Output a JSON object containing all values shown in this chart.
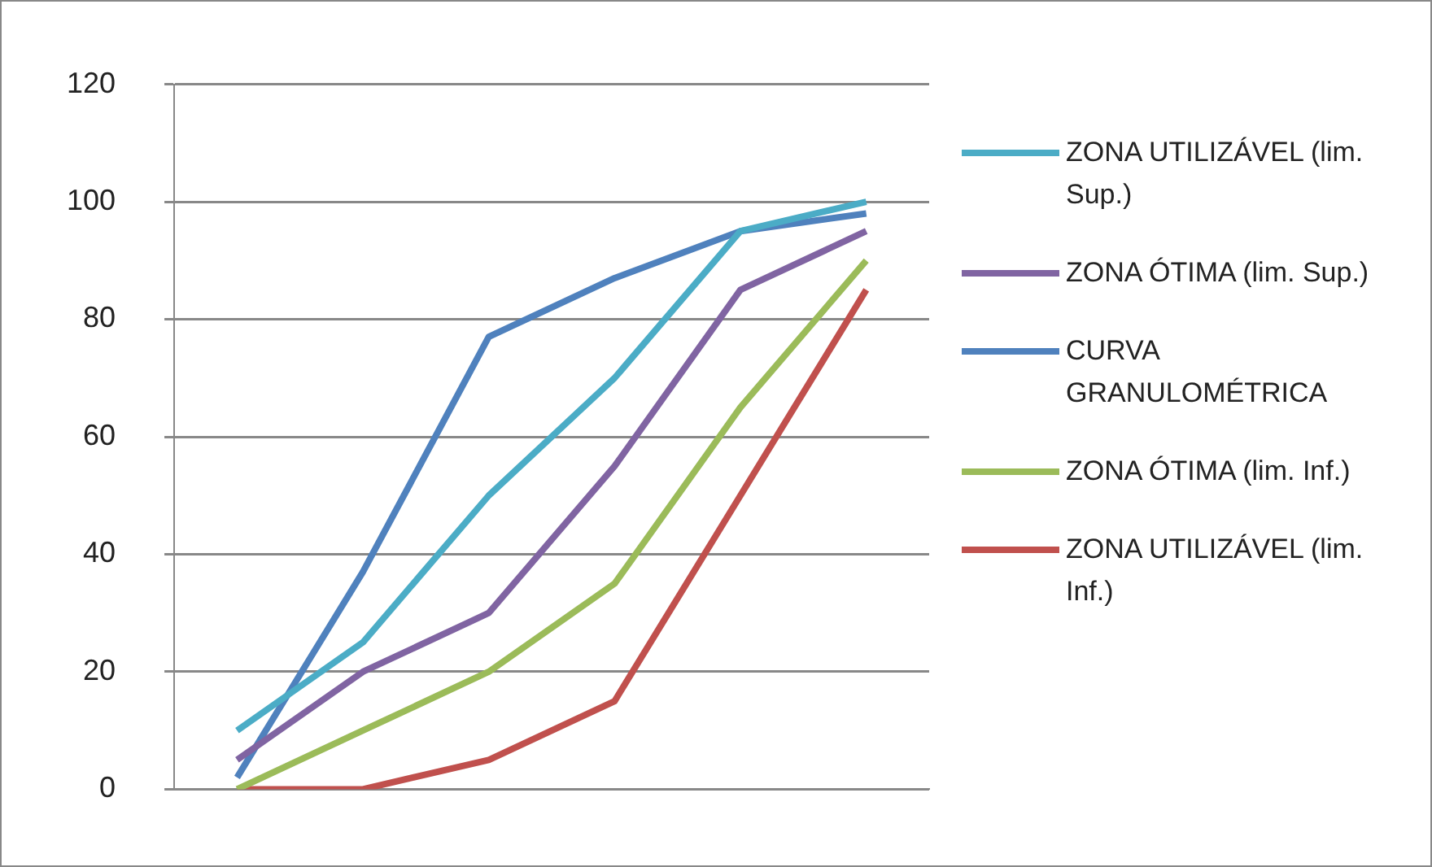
{
  "chart_data": {
    "type": "line",
    "categories": [
      null,
      null,
      null,
      null,
      null,
      null
    ],
    "ylim": [
      0,
      120
    ],
    "yticks": [
      0,
      20,
      40,
      60,
      80,
      100,
      120
    ],
    "grid": "y",
    "legend": "right",
    "marker": "none",
    "line_style": "solid",
    "series": [
      {
        "name": "ZONA UTILIZÁVEL (lim. Sup.)",
        "color": "#4bacc6",
        "values": [
          10,
          25,
          50,
          70,
          95,
          100
        ]
      },
      {
        "name": "ZONA ÓTIMA (lim. Sup.)",
        "color": "#8064a2",
        "values": [
          5,
          20,
          30,
          55,
          85,
          95
        ]
      },
      {
        "name": "CURVA GRANULOMÉTRICA",
        "color": "#4f81bd",
        "values": [
          2,
          37,
          77,
          87,
          95,
          98
        ]
      },
      {
        "name": "ZONA ÓTIMA (lim. Inf.)",
        "color": "#9bbb59",
        "values": [
          0,
          10,
          20,
          35,
          65,
          90
        ]
      },
      {
        "name": "ZONA UTILIZÁVEL (lim. Inf.)",
        "color": "#c0504d",
        "values": [
          0,
          0,
          5,
          15,
          50,
          85
        ]
      }
    ]
  }
}
